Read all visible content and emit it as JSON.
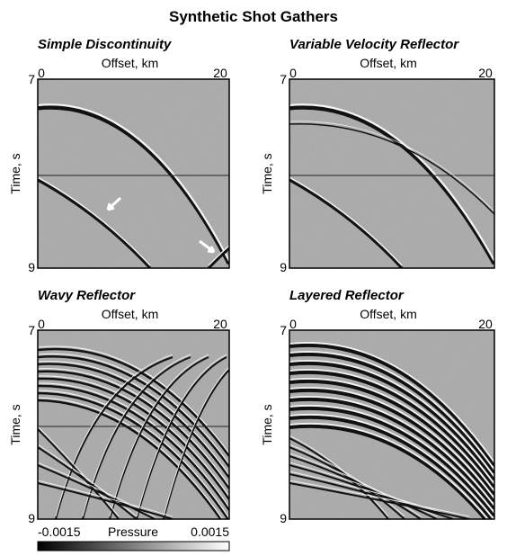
{
  "title": "Synthetic Shot Gathers",
  "panels": [
    {
      "title": "Simple Discontinuity",
      "x_label": "Offset, km",
      "x_ticks": [
        "0",
        "20"
      ],
      "y_label": "Time, s",
      "y_ticks": [
        "7",
        "9"
      ]
    },
    {
      "title": "Variable Velocity Reflector",
      "x_label": "Offset, km",
      "x_ticks": [
        "0",
        "20"
      ],
      "y_label": "Time, s",
      "y_ticks": [
        "7",
        "9"
      ]
    },
    {
      "title": "Wavy Reflector",
      "x_label": "Offset, km",
      "x_ticks": [
        "0",
        "20"
      ],
      "y_label": "Time, s",
      "y_ticks": [
        "7",
        "9"
      ]
    },
    {
      "title": "Layered Reflector",
      "x_label": "Offset, km",
      "x_ticks": [
        "0",
        "20"
      ],
      "y_label": "Time, s",
      "y_ticks": [
        "7",
        "9"
      ]
    }
  ],
  "colorbar": {
    "min_label": "-0.0015",
    "label": "Pressure",
    "max_label": "0.0015"
  }
}
